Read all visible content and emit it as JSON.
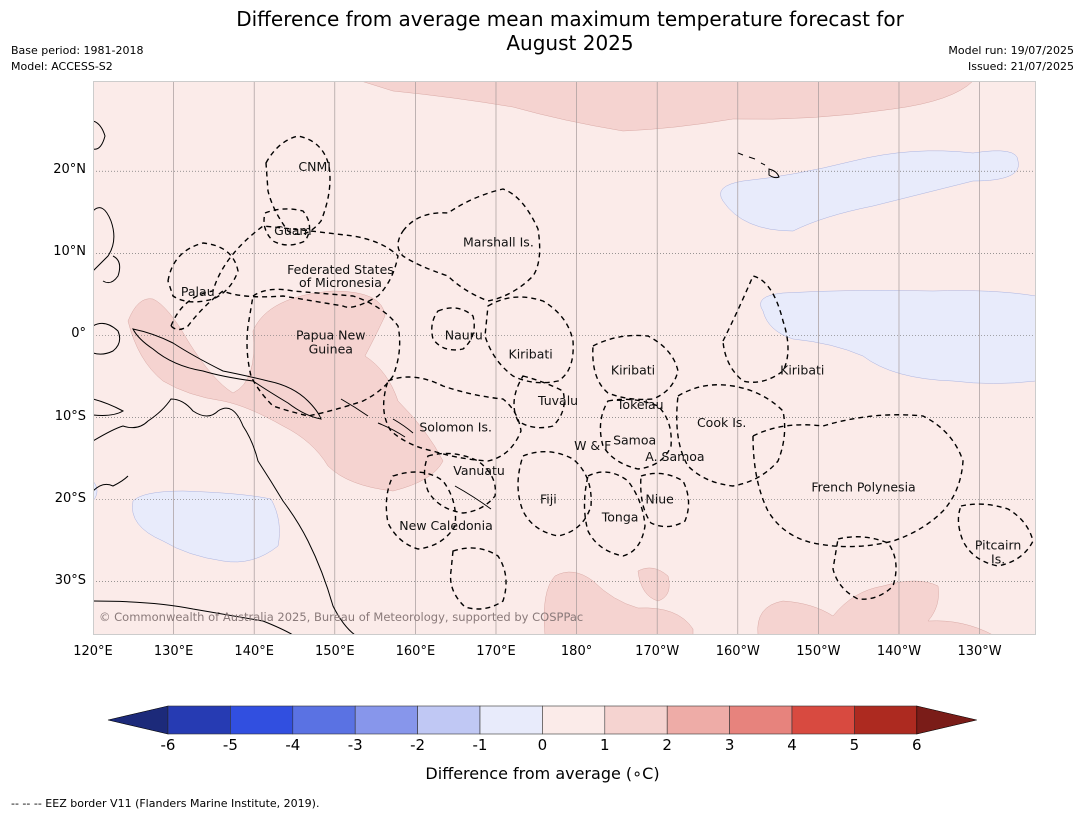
{
  "title_line1": "Difference from average mean maximum temperature forecast for",
  "title_line2": "August 2025",
  "meta": {
    "base_period": "Base period: 1981-2018",
    "model": "Model: ACCESS-S2",
    "model_run": "Model run: 19/07/2025",
    "issued": "Issued: 21/07/2025"
  },
  "map": {
    "lon_range": [
      120,
      237
    ],
    "lat_range": [
      -36.5,
      31
    ],
    "lon_ticks": [
      {
        "lon": 120,
        "label": "120°E"
      },
      {
        "lon": 130,
        "label": "130°E"
      },
      {
        "lon": 140,
        "label": "140°E"
      },
      {
        "lon": 150,
        "label": "150°E"
      },
      {
        "lon": 160,
        "label": "160°E"
      },
      {
        "lon": 170,
        "label": "170°E"
      },
      {
        "lon": 180,
        "label": "180°"
      },
      {
        "lon": 190,
        "label": "170°W"
      },
      {
        "lon": 200,
        "label": "160°W"
      },
      {
        "lon": 210,
        "label": "150°W"
      },
      {
        "lon": 220,
        "label": "140°W"
      },
      {
        "lon": 230,
        "label": "130°W"
      }
    ],
    "lat_ticks": [
      {
        "lat": 20,
        "label": "20°N"
      },
      {
        "lat": 10,
        "label": "10°N"
      },
      {
        "lat": 0,
        "label": "0°"
      },
      {
        "lat": -10,
        "label": "10°S"
      },
      {
        "lat": -20,
        "label": "20°S"
      },
      {
        "lat": -30,
        "label": "30°S"
      }
    ],
    "background_anomaly_class": "0 to 1",
    "region_labels": [
      {
        "text": "CNMI",
        "lon": 147.5,
        "lat": 20.5
      },
      {
        "text": "Guam",
        "lon": 144.8,
        "lat": 12.7
      },
      {
        "text": "Marshall Is.",
        "lon": 170.3,
        "lat": 11.3
      },
      {
        "text": "Federated States",
        "lon": 150.7,
        "lat": 8
      },
      {
        "text": "of Micronesia",
        "lon": 150.7,
        "lat": 6.4
      },
      {
        "text": "Palau",
        "lon": 133,
        "lat": 5.3
      },
      {
        "text": "Papua New",
        "lon": 149.5,
        "lat": 0
      },
      {
        "text": "Guinea",
        "lon": 149.5,
        "lat": -1.7
      },
      {
        "text": "Nauru",
        "lon": 166,
        "lat": 0
      },
      {
        "text": "Kiribati",
        "lon": 174.3,
        "lat": -2.3
      },
      {
        "text": "Kiribati",
        "lon": 187,
        "lat": -4.3
      },
      {
        "text": "Kiribati",
        "lon": 208,
        "lat": -4.3
      },
      {
        "text": "Tuvalu",
        "lon": 177.7,
        "lat": -8
      },
      {
        "text": "Tokelau",
        "lon": 187.9,
        "lat": -8.5
      },
      {
        "text": "Cook Is.",
        "lon": 198,
        "lat": -10.7
      },
      {
        "text": "Solomon Is.",
        "lon": 165,
        "lat": -11.2
      },
      {
        "text": "Samoa",
        "lon": 187.2,
        "lat": -12.8
      },
      {
        "text": "W & F",
        "lon": 182,
        "lat": -13.5
      },
      {
        "text": "A. Samoa",
        "lon": 192.2,
        "lat": -14.8
      },
      {
        "text": "Vanuatu",
        "lon": 167.9,
        "lat": -16.5
      },
      {
        "text": "French Polynesia",
        "lon": 215.6,
        "lat": -18.5
      },
      {
        "text": "Fiji",
        "lon": 176.5,
        "lat": -20
      },
      {
        "text": "Niue",
        "lon": 190.3,
        "lat": -20
      },
      {
        "text": "Tonga",
        "lon": 185.4,
        "lat": -22.2
      },
      {
        "text": "New Caledonia",
        "lon": 163.8,
        "lat": -23.2
      },
      {
        "text": "Pitcairn",
        "lon": 232.3,
        "lat": -25.6
      },
      {
        "text": "Is.",
        "lon": 232.3,
        "lat": -27.3
      }
    ],
    "copyright": "© Commonwealth of Australia 2025, Bureau of Meteorology, supported by COSPPac"
  },
  "colorbar": {
    "title": "Difference from average (∘C)",
    "ticks": [
      "-6",
      "-5",
      "-4",
      "-3",
      "-2",
      "-1",
      "0",
      "1",
      "2",
      "3",
      "4",
      "5",
      "6"
    ],
    "under_color": "#1c2a7a",
    "over_color": "#7a1c18",
    "colors": [
      "#263bb3",
      "#314fe0",
      "#5a72e3",
      "#8796eb",
      "#c0c8f4",
      "#e8ebfb",
      "#fbebe9",
      "#f5d3d0",
      "#eeaca7",
      "#e7837d",
      "#d84a40",
      "#ad2a20"
    ]
  },
  "footnote": "-- -- -- EEZ border V11 (Flanders Marine Institute, 2019)."
}
